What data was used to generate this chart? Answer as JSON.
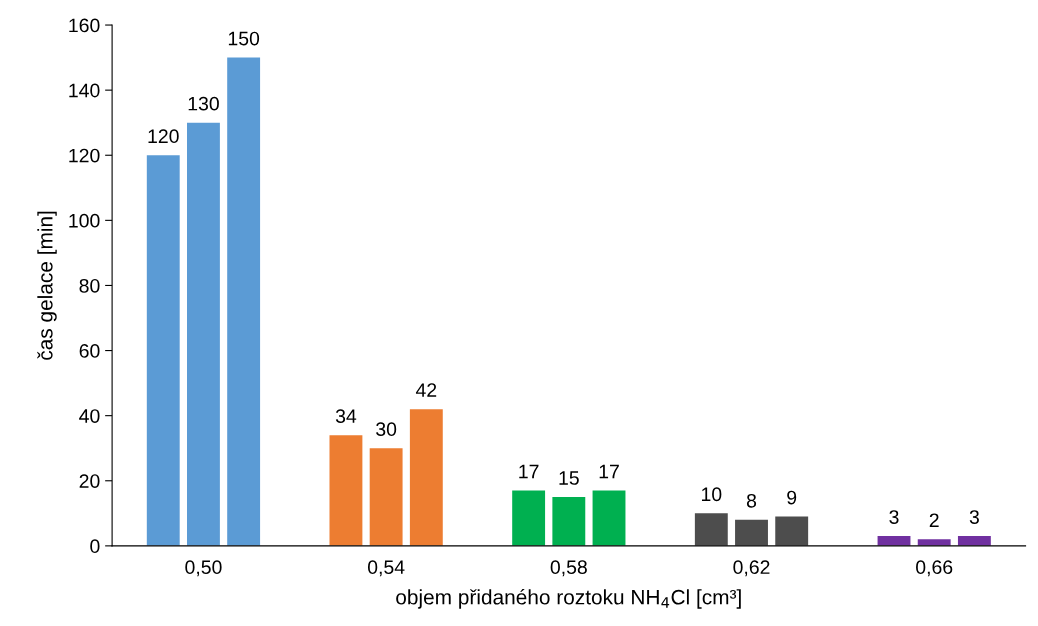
{
  "chart_data": {
    "type": "bar",
    "xlabel": "objem přidaného roztoku NH$_{4}$Cl [cm³]",
    "ylabel": "čas gelace [min]",
    "categories": [
      "0,50",
      "0,54",
      "0,58",
      "0,62",
      "0,66"
    ],
    "series": [
      {
        "colors": [
          "#5b9bd5",
          "#ed7d31",
          "#00b050",
          "#4d4d4d",
          "#7030a0"
        ],
        "values": [
          120,
          34,
          17,
          10,
          3
        ]
      },
      {
        "colors": [
          "#5b9bd5",
          "#ed7d31",
          "#00b050",
          "#4d4d4d",
          "#7030a0"
        ],
        "values": [
          130,
          30,
          15,
          8,
          2
        ]
      },
      {
        "colors": [
          "#5b9bd5",
          "#ed7d31",
          "#00b050",
          "#4d4d4d",
          "#7030a0"
        ],
        "values": [
          150,
          42,
          17,
          9,
          3
        ]
      }
    ],
    "ylim": [
      0,
      160
    ],
    "yticks": [
      0,
      20,
      40,
      60,
      80,
      100,
      120,
      140,
      160
    ],
    "data_labels": true,
    "grid": false
  }
}
